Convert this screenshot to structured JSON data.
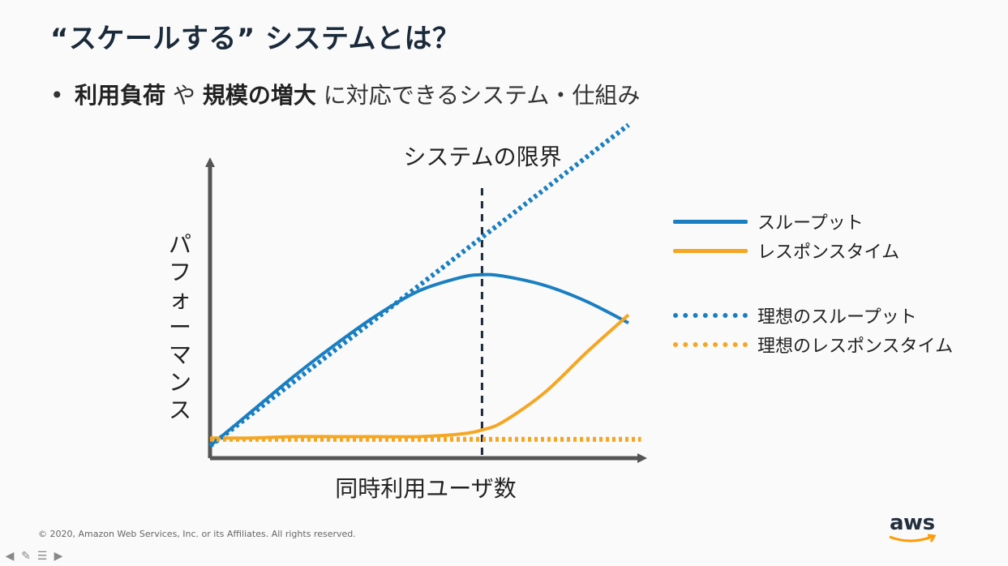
{
  "slide": {
    "title": "“スケールする” システムとは？",
    "bullet": {
      "dot": "•",
      "bold1": "利用負荷",
      "plain1": " や ",
      "bold2": "規模の増大",
      "plain2": " に対応できるシステム・仕組み"
    },
    "footer": "© 2020, Amazon Web Services, Inc. or its Affiliates. All rights reserved.",
    "logo_text": "aws",
    "nav_icons": [
      "arrow-left-icon",
      "pen-icon",
      "menu-icon",
      "arrow-right-icon"
    ]
  },
  "chart_data": {
    "type": "line",
    "title": "",
    "xlabel": "同時利用ユーザ数",
    "ylabel": "パフォーマンス",
    "xlim": [
      0,
      10
    ],
    "ylim": [
      0,
      10
    ],
    "annotations": [
      {
        "text": "システムの限界",
        "x": 6.5
      }
    ],
    "series": [
      {
        "name": "スループット",
        "style": "solid",
        "color": "#1a7fc1",
        "x": [
          0,
          1,
          2,
          3,
          4,
          5,
          6,
          6.5,
          7,
          8,
          9,
          10
        ],
        "y": [
          0,
          1.3,
          2.6,
          3.8,
          4.9,
          5.8,
          6.3,
          6.4,
          6.35,
          6.0,
          5.4,
          4.6
        ]
      },
      {
        "name": "レスポンスタイム",
        "style": "solid",
        "color": "#f5a623",
        "x": [
          0,
          1,
          2,
          3,
          4,
          5,
          6,
          6.5,
          7,
          8,
          9,
          10
        ],
        "y": [
          0.3,
          0.3,
          0.35,
          0.35,
          0.35,
          0.35,
          0.45,
          0.6,
          0.9,
          2.0,
          3.5,
          4.9
        ]
      },
      {
        "name": "理想のスループット",
        "style": "dotted",
        "color": "#1a7fc1",
        "x": [
          0,
          10
        ],
        "y": [
          0,
          12.0
        ]
      },
      {
        "name": "理想のレスポンスタイム",
        "style": "dotted",
        "color": "#f5a623",
        "x": [
          0,
          10.3
        ],
        "y": [
          0.25,
          0.25
        ]
      }
    ],
    "legend_position": "right"
  }
}
